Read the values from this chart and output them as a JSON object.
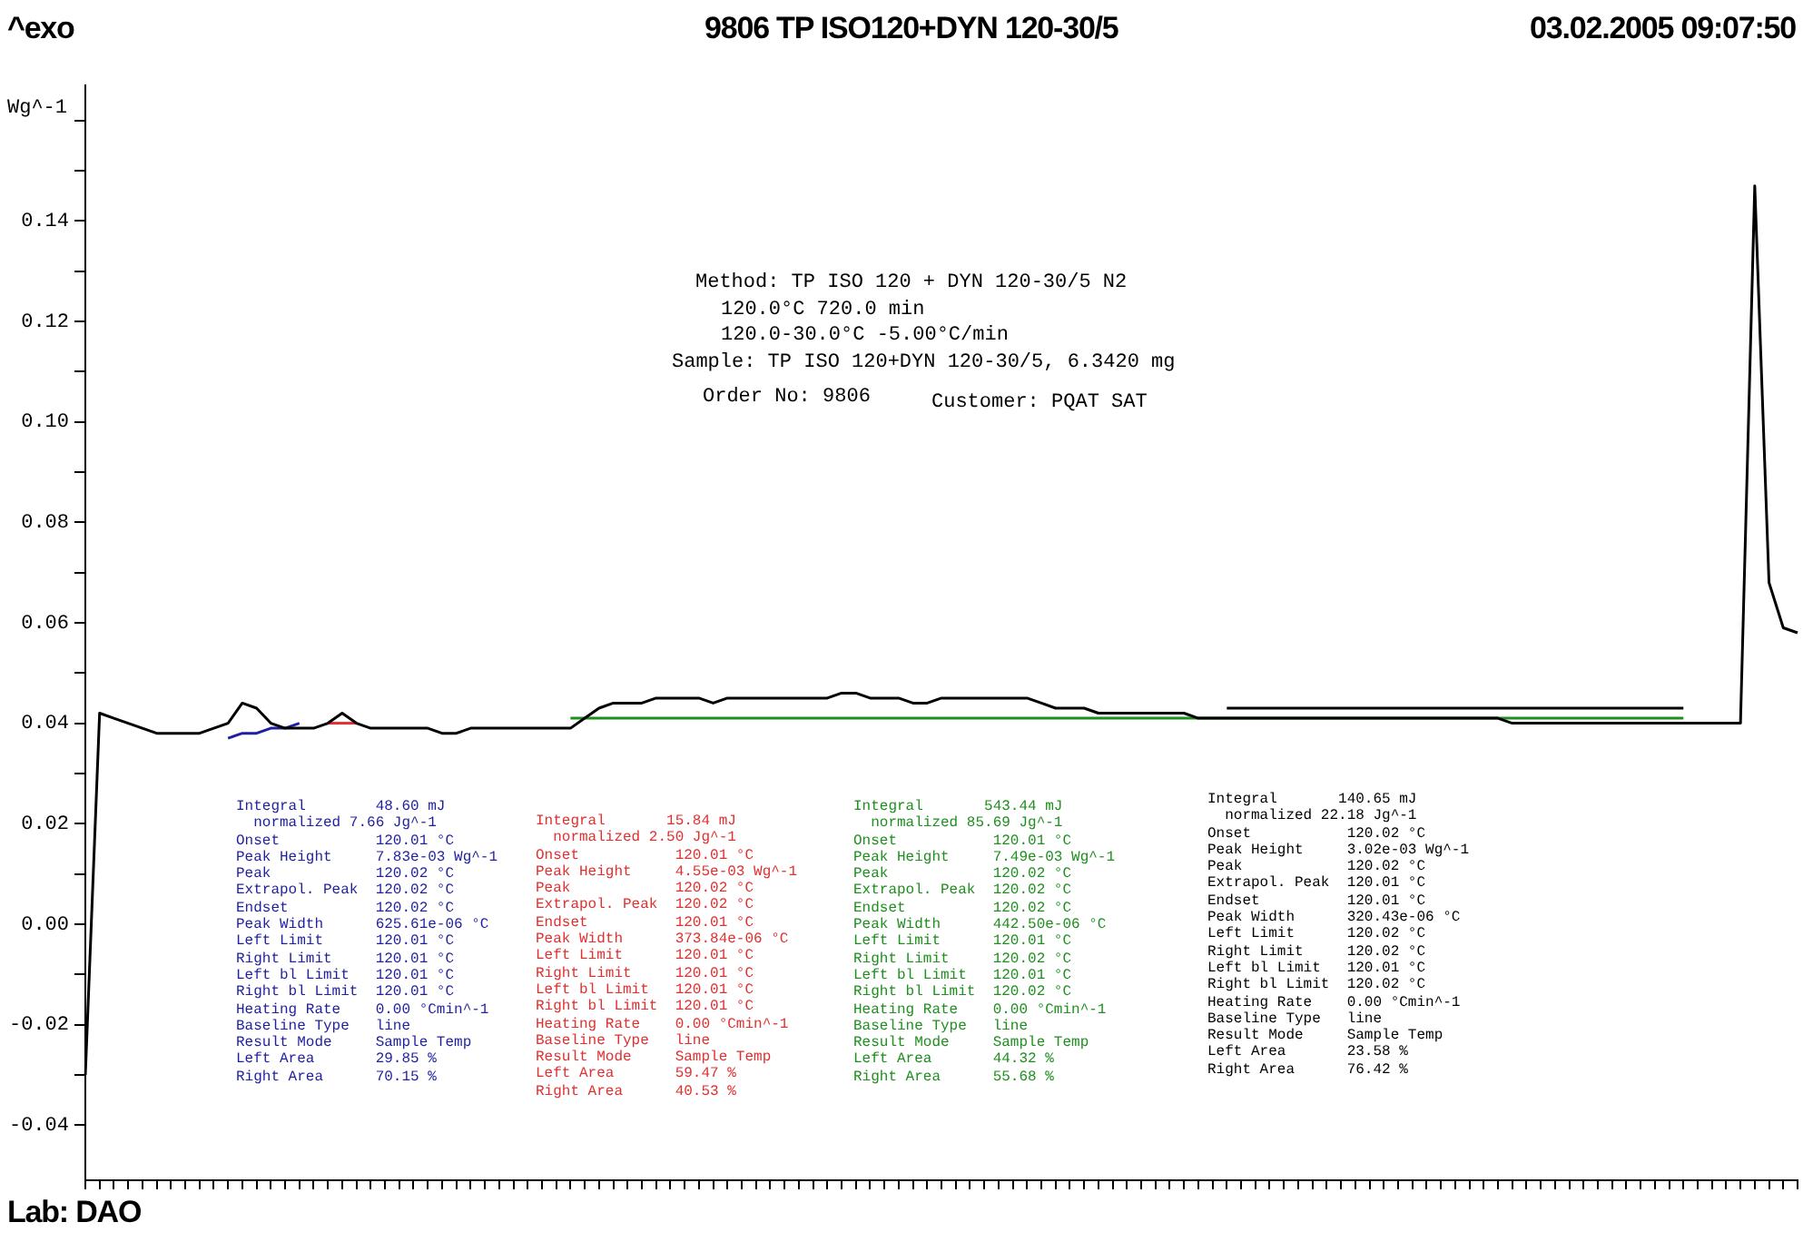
{
  "chart_data": {
    "type": "line",
    "title": "9806 TP ISO120+DYN 120-30/5",
    "ylabel": "Wg^-1",
    "categories": [
      null,
      null,
      null,
      null,
      null,
      null,
      null,
      null,
      null,
      null,
      null,
      null,
      null,
      null,
      null,
      null,
      null,
      null,
      null,
      null,
      null,
      null,
      null,
      null,
      null,
      null,
      null,
      null,
      null,
      null,
      null,
      null,
      null,
      null,
      null,
      null,
      null,
      null,
      null,
      null,
      null,
      null,
      null,
      null,
      null,
      null,
      null,
      null,
      null,
      null,
      null,
      null,
      null,
      null,
      null,
      null,
      null,
      null,
      null,
      null,
      null,
      null,
      null,
      null,
      null,
      null,
      null,
      null,
      null,
      null,
      null,
      null,
      null,
      null,
      null,
      null,
      null,
      null,
      null,
      null,
      null,
      null,
      null,
      null,
      null,
      null,
      null,
      null,
      null,
      null,
      null,
      null,
      null,
      null,
      null,
      null,
      null,
      null,
      null,
      null,
      null,
      null,
      null,
      null,
      null,
      null,
      null,
      null,
      null,
      null,
      null,
      null,
      null,
      null,
      null,
      null,
      null,
      null,
      null,
      null,
      null
    ],
    "series": [
      {
        "color": "#000000",
        "values": [
          -0.03,
          0.042,
          0.041,
          0.04,
          0.039,
          0.038,
          0.038,
          0.038,
          0.038,
          0.039,
          0.04,
          0.044,
          0.043,
          0.04,
          0.039,
          0.039,
          0.039,
          0.04,
          0.042,
          0.04,
          0.039,
          0.039,
          0.039,
          0.039,
          0.039,
          0.038,
          0.038,
          0.039,
          0.039,
          0.039,
          0.039,
          0.039,
          0.039,
          0.039,
          0.039,
          0.041,
          0.043,
          0.044,
          0.044,
          0.044,
          0.045,
          0.045,
          0.045,
          0.045,
          0.044,
          0.045,
          0.045,
          0.045,
          0.045,
          0.045,
          0.045,
          0.045,
          0.045,
          0.046,
          0.046,
          0.045,
          0.045,
          0.045,
          0.044,
          0.044,
          0.045,
          0.045,
          0.045,
          0.045,
          0.045,
          0.045,
          0.045,
          0.044,
          0.043,
          0.043,
          0.043,
          0.042,
          0.042,
          0.042,
          0.042,
          0.042,
          0.042,
          0.042,
          0.041,
          0.041,
          0.041,
          0.041,
          0.041,
          0.041,
          0.041,
          0.041,
          0.041,
          0.041,
          0.041,
          0.041,
          0.041,
          0.041,
          0.041,
          0.041,
          0.041,
          0.041,
          0.041,
          0.041,
          0.041,
          0.041,
          0.04,
          0.04,
          0.04,
          0.04,
          0.04,
          0.04,
          0.04,
          0.04,
          0.04,
          0.04,
          0.04,
          0.04,
          0.04,
          0.04,
          0.04,
          0.04,
          0.04,
          0.147,
          0.068,
          0.059,
          0.058
        ]
      },
      {
        "color": "#1f1fa0",
        "values": [
          null,
          null,
          null,
          null,
          null,
          null,
          null,
          null,
          null,
          null,
          0.037,
          0.038,
          0.038,
          0.039,
          0.039,
          0.04,
          null,
          null,
          null,
          null,
          null,
          null,
          null,
          null,
          null,
          null,
          null,
          null,
          null,
          null,
          null,
          null,
          null,
          null,
          null,
          null,
          null,
          null,
          null,
          null,
          null,
          null,
          null,
          null,
          null,
          null,
          null,
          null,
          null,
          null,
          null,
          null,
          null,
          null,
          null,
          null,
          null,
          null,
          null,
          null,
          null,
          null,
          null,
          null,
          null,
          null,
          null,
          null,
          null,
          null,
          null,
          null,
          null,
          null,
          null,
          null,
          null,
          null,
          null,
          null,
          null,
          null,
          null,
          null,
          null,
          null,
          null,
          null,
          null,
          null,
          null,
          null,
          null,
          null,
          null,
          null,
          null,
          null,
          null,
          null,
          null,
          null,
          null,
          null,
          null,
          null,
          null,
          null,
          null,
          null,
          null,
          null,
          null,
          null,
          null,
          null,
          null,
          null,
          null,
          null,
          null
        ]
      },
      {
        "color": "#e03030",
        "values": [
          null,
          null,
          null,
          null,
          null,
          null,
          null,
          null,
          null,
          null,
          null,
          null,
          null,
          null,
          null,
          null,
          null,
          0.04,
          0.04,
          0.04,
          null,
          null,
          null,
          null,
          null,
          null,
          null,
          null,
          null,
          null,
          null,
          null,
          null,
          null,
          null,
          null,
          null,
          null,
          null,
          null,
          null,
          null,
          null,
          null,
          null,
          null,
          null,
          null,
          null,
          null,
          null,
          null,
          null,
          null,
          null,
          null,
          null,
          null,
          null,
          null,
          null,
          null,
          null,
          null,
          null,
          null,
          null,
          null,
          null,
          null,
          null,
          null,
          null,
          null,
          null,
          null,
          null,
          null,
          null,
          null,
          null,
          null,
          null,
          null,
          null,
          null,
          null,
          null,
          null,
          null,
          null,
          null,
          null,
          null,
          null,
          null,
          null,
          null,
          null,
          null,
          null,
          null,
          null,
          null,
          null,
          null,
          null,
          null,
          null,
          null,
          null,
          null,
          null,
          null,
          null,
          null,
          null,
          null,
          null,
          null,
          null
        ]
      },
      {
        "color": "#1f8f1f",
        "values": [
          null,
          null,
          null,
          null,
          null,
          null,
          null,
          null,
          null,
          null,
          null,
          null,
          null,
          null,
          null,
          null,
          null,
          null,
          null,
          null,
          null,
          null,
          null,
          null,
          null,
          null,
          null,
          null,
          null,
          null,
          null,
          null,
          null,
          null,
          0.041,
          0.041,
          0.041,
          0.041,
          0.041,
          0.041,
          0.041,
          0.041,
          0.041,
          0.041,
          0.041,
          0.041,
          0.041,
          0.041,
          0.041,
          0.041,
          0.041,
          0.041,
          0.041,
          0.041,
          0.041,
          0.041,
          0.041,
          0.041,
          0.041,
          0.041,
          0.041,
          0.041,
          0.041,
          0.041,
          0.041,
          0.041,
          0.041,
          0.041,
          0.041,
          0.041,
          0.041,
          0.041,
          0.041,
          0.041,
          0.041,
          0.041,
          0.041,
          0.041,
          0.041,
          0.041,
          0.041,
          0.041,
          0.041,
          0.041,
          0.041,
          0.041,
          0.041,
          0.041,
          0.041,
          0.041,
          0.041,
          0.041,
          0.041,
          0.041,
          0.041,
          0.041,
          0.041,
          0.041,
          0.041,
          0.041,
          0.041,
          0.041,
          0.041,
          0.041,
          0.041,
          0.041,
          0.041,
          0.041,
          0.041,
          0.041,
          0.041,
          0.041,
          0.041,
          null,
          null,
          null,
          null,
          null,
          null,
          null,
          null
        ]
      },
      {
        "color": "#000000",
        "values": [
          null,
          null,
          null,
          null,
          null,
          null,
          null,
          null,
          null,
          null,
          null,
          null,
          null,
          null,
          null,
          null,
          null,
          null,
          null,
          null,
          null,
          null,
          null,
          null,
          null,
          null,
          null,
          null,
          null,
          null,
          null,
          null,
          null,
          null,
          null,
          null,
          null,
          null,
          null,
          null,
          null,
          null,
          null,
          null,
          null,
          null,
          null,
          null,
          null,
          null,
          null,
          null,
          null,
          null,
          null,
          null,
          null,
          null,
          null,
          null,
          null,
          null,
          null,
          null,
          null,
          null,
          null,
          null,
          null,
          null,
          null,
          null,
          null,
          null,
          null,
          null,
          null,
          null,
          null,
          null,
          0.043,
          0.043,
          0.043,
          0.043,
          0.043,
          0.043,
          0.043,
          0.043,
          0.043,
          0.043,
          0.043,
          0.043,
          0.043,
          0.043,
          0.043,
          0.043,
          0.043,
          0.043,
          0.043,
          0.043,
          0.043,
          0.043,
          0.043,
          0.043,
          0.043,
          0.043,
          0.043,
          0.043,
          0.043,
          0.043,
          0.043,
          0.043,
          0.043,
          null,
          null,
          null,
          null,
          null,
          null,
          null,
          null
        ]
      }
    ],
    "ylim": [
      -0.051,
      0.167
    ],
    "yticks": [
      -0.04,
      {
        "value": -0.03,
        "label": null
      },
      -0.02,
      {
        "value": -0.01,
        "label": null
      },
      {
        "value": 0,
        "label": "0.00"
      },
      {
        "value": 0.01,
        "label": null
      },
      0.02,
      {
        "value": 0.03,
        "label": null
      },
      0.04,
      {
        "value": 0.05,
        "label": null
      },
      0.06,
      {
        "value": 0.07,
        "label": null
      },
      0.08,
      {
        "value": 0.09,
        "label": null
      },
      {
        "value": 0.1,
        "label": "0.10"
      },
      {
        "value": 0.11,
        "label": null
      },
      0.12,
      {
        "value": 0.13,
        "label": null
      },
      0.14,
      {
        "value": 0.15,
        "label": null
      },
      {
        "value": 0.16,
        "label": null
      }
    ],
    "tick_labels": "y",
    "grid": false,
    "legend": false,
    "marker": "none",
    "line_style": "solid",
    "annotations": [
      "^exo",
      "03.02.2005 09:07:50",
      "Lab: DAO",
      "Method: TP ISO 120 + DYN 120-30/5 N2",
      "120.0°C 720.0 min",
      "120.0-30.0°C -5.00°C/min",
      "Sample: TP ISO 120+DYN 120-30/5, 6.3420 mg",
      "Order No: 9806",
      "Customer: PQAT SAT",
      "Integral        48.60 mJ\n  normalized 7.66 Jg^-1\nOnset           120.01 °C\nPeak Height     7.83e-03 Wg^-1\nPeak            120.02 °C\nExtrapol. Peak  120.02 °C\nEndset          120.02 °C\nPeak Width      625.61e-06 °C\nLeft Limit      120.01 °C\nRight Limit     120.01 °C\nLeft bl Limit   120.01 °C\nRight bl Limit  120.01 °C\nHeating Rate    0.00 °Cmin^-1\nBaseline Type   line\nResult Mode     Sample Temp\nLeft Area       29.85 %\nRight Area      70.15 %",
      "Integral       15.84 mJ\n  normalized 2.50 Jg^-1\nOnset           120.01 °C\nPeak Height     4.55e-03 Wg^-1\nPeak            120.02 °C\nExtrapol. Peak  120.02 °C\nEndset          120.01 °C\nPeak Width      373.84e-06 °C\nLeft Limit      120.01 °C\nRight Limit     120.01 °C\nLeft bl Limit   120.01 °C\nRight bl Limit  120.01 °C\nHeating Rate    0.00 °Cmin^-1\nBaseline Type   line\nResult Mode     Sample Temp\nLeft Area       59.47 %\nRight Area      40.53 %",
      "Integral       543.44 mJ\n  normalized 85.69 Jg^-1\nOnset           120.01 °C\nPeak Height     7.49e-03 Wg^-1\nPeak            120.02 °C\nExtrapol. Peak  120.02 °C\nEndset          120.02 °C\nPeak Width      442.50e-06 °C\nLeft Limit      120.01 °C\nRight Limit     120.02 °C\nLeft bl Limit   120.01 °C\nRight bl Limit  120.02 °C\nHeating Rate    0.00 °Cmin^-1\nBaseline Type   line\nResult Mode     Sample Temp\nLeft Area       44.32 %\nRight Area      55.68 %",
      "Integral       140.65 mJ\n  normalized 22.18 Jg^-1\nOnset           120.02 °C\nPeak Height     3.02e-03 Wg^-1\nPeak            120.02 °C\nExtrapol. Peak  120.01 °C\nEndset          120.01 °C\nPeak Width      320.43e-06 °C\nLeft Limit      120.02 °C\nRight Limit     120.02 °C\nLeft bl Limit   120.01 °C\nRight bl Limit  120.02 °C\nHeating Rate    0.00 °Cmin^-1\nBaseline Type   line\nResult Mode     Sample Temp\nLeft Area       23.58 %\nRight Area      76.42 %"
    ]
  }
}
